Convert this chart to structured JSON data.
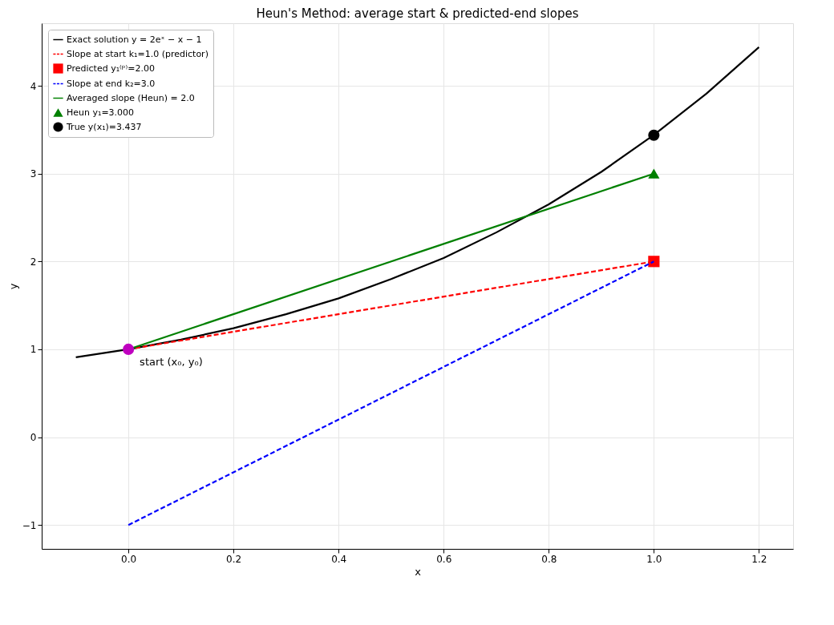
{
  "chart_data": {
    "type": "line",
    "title": "Heun's Method: average start & predicted-end slopes",
    "xlabel": "x",
    "ylabel": "y",
    "xlim": [
      -0.165,
      1.265
    ],
    "ylim": [
      -1.272,
      4.712
    ],
    "xticks": [
      {
        "value": 0,
        "label": "0.0"
      },
      {
        "value": 0.2,
        "label": "0.2"
      },
      {
        "value": 0.4,
        "label": "0.4"
      },
      {
        "value": 0.6,
        "label": "0.6"
      },
      {
        "value": 0.8,
        "label": "0.8"
      },
      {
        "value": 1,
        "label": "1.0"
      },
      {
        "value": 1.2,
        "label": "1.2"
      }
    ],
    "yticks": [
      {
        "value": -1,
        "label": "−1"
      },
      0,
      1,
      2,
      3,
      4
    ],
    "grid": true,
    "legend": "top left",
    "series": [
      {
        "name": "Exact solution y = 2eˣ − x − 1",
        "color": "#000000",
        "line_style": "solid",
        "x": [
          -0.1,
          0,
          0.1,
          0.2,
          0.3,
          0.4,
          0.5,
          0.6,
          0.7,
          0.8,
          0.9,
          1.0,
          1.1,
          1.2
        ],
        "values": [
          0.91,
          1.0,
          1.11,
          1.24,
          1.4,
          1.58,
          1.8,
          2.04,
          2.33,
          2.65,
          3.02,
          3.44,
          3.91,
          4.44
        ]
      },
      {
        "name": "Slope at start k₁=1.0 (predictor)",
        "color": "#ff0000",
        "line_style": "dashed",
        "x": [
          0,
          1
        ],
        "values": [
          1,
          2
        ]
      },
      {
        "name": "Predicted y₁⁽ᵖ⁾=2.00",
        "type": "scatter",
        "color": "#ff0000",
        "marker": "square",
        "x": [
          1
        ],
        "values": [
          2
        ]
      },
      {
        "name": "Slope at end k₂=3.0",
        "color": "#0000ff",
        "line_style": "dashed",
        "x": [
          0,
          1
        ],
        "values": [
          -1,
          2
        ]
      },
      {
        "name": "Averaged slope (Heun) = 2.0",
        "color": "#008000",
        "line_style": "solid",
        "x": [
          0,
          1
        ],
        "values": [
          1,
          3
        ]
      },
      {
        "name": "Heun y₁=3.000",
        "type": "scatter",
        "color": "#008000",
        "marker": "triangle",
        "x": [
          1
        ],
        "values": [
          3
        ]
      },
      {
        "name": "True y(x₁)=3.437",
        "type": "scatter",
        "color": "#000000",
        "marker": "circle",
        "x": [
          1
        ],
        "values": [
          3.437
        ]
      },
      {
        "type": "scatter",
        "color": "#bf00bf",
        "marker": "circle",
        "x": [
          0
        ],
        "values": [
          1
        ]
      }
    ],
    "annotations": [
      {
        "text": "start (x₀, y₀)",
        "x": 0,
        "y": 1
      }
    ]
  }
}
